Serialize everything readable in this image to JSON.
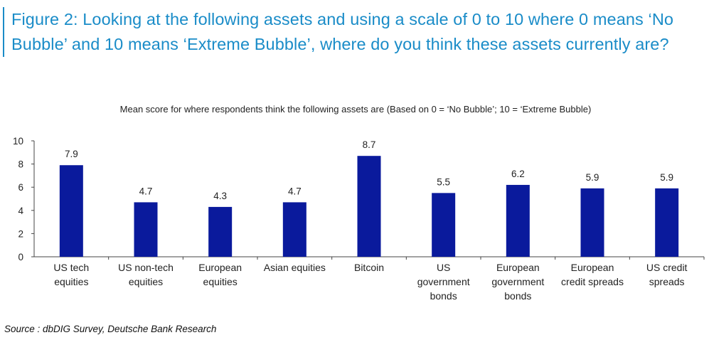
{
  "figure": {
    "title": "Figure 2: Looking at the following assets and using a scale of 0 to 10 where 0 means ‘No Bubble’ and 10 means ‘Extreme Bubble’, where do you think these assets currently are?"
  },
  "source": "Source : dbDIG Survey, Deutsche Bank Research",
  "chart_data": {
    "type": "bar",
    "title": "Mean score for where respondents think the following assets are (Based on 0 = ‘No Bubble’; 10 = ‘Extreme Bubble)",
    "categories": [
      [
        "US tech",
        "equities"
      ],
      [
        "US non-tech",
        "equities"
      ],
      [
        "European",
        "equities"
      ],
      [
        "Asian equities"
      ],
      [
        "Bitcoin"
      ],
      [
        "US",
        "government",
        "bonds"
      ],
      [
        "European",
        "government",
        "bonds"
      ],
      [
        "European",
        "credit spreads"
      ],
      [
        "US credit",
        "spreads"
      ]
    ],
    "values": [
      7.9,
      4.7,
      4.3,
      4.7,
      8.7,
      5.5,
      6.2,
      5.9,
      5.9
    ],
    "data_labels": [
      "7.9",
      "4.7",
      "4.3",
      "4.7",
      "8.7",
      "5.5",
      "6.2",
      "5.9",
      "5.9"
    ],
    "ylim": [
      0,
      10
    ],
    "yticks": [
      "0",
      "2",
      "4",
      "6",
      "8",
      "10"
    ],
    "bar_color": "#0a1a9c",
    "grid": false,
    "legend": "none"
  }
}
